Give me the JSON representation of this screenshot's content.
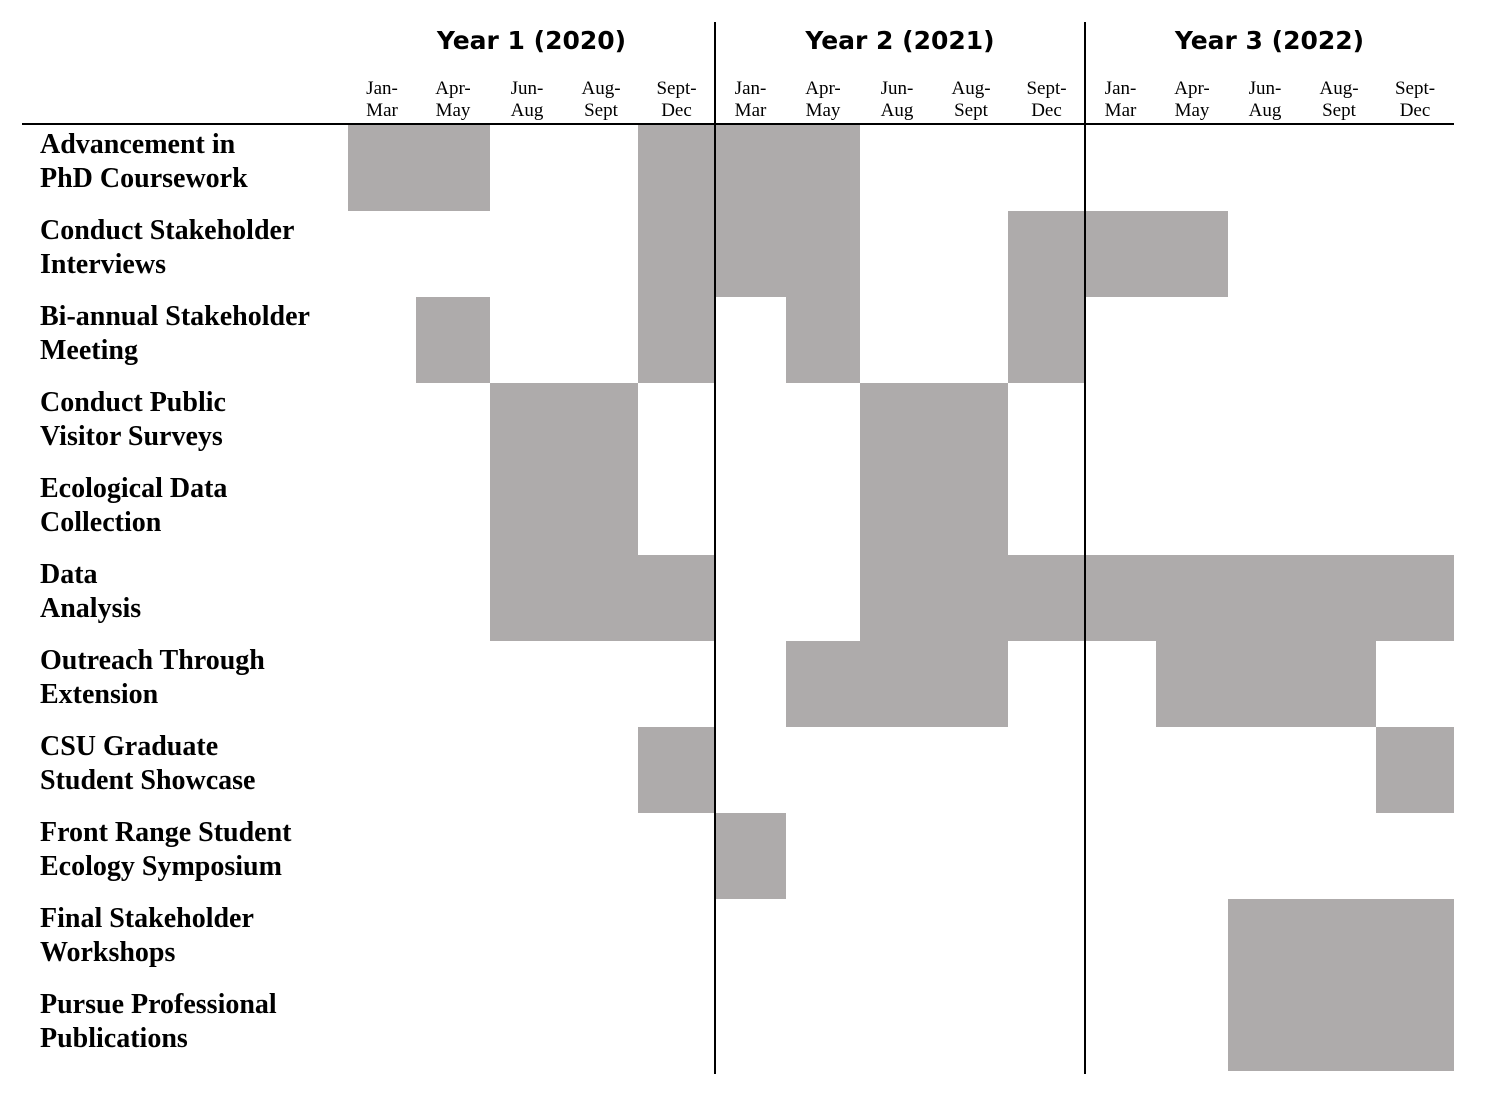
{
  "chart_data": {
    "type": "gantt",
    "years": [
      "Year 1 (2020)",
      "Year 2 (2021)",
      "Year 3 (2022)"
    ],
    "periods": [
      [
        "Jan-",
        "Mar"
      ],
      [
        "Apr-",
        "May"
      ],
      [
        "Jun-",
        "Aug"
      ],
      [
        "Aug-",
        "Sept"
      ],
      [
        "Sept-",
        "Dec"
      ]
    ],
    "bar_color": "#aeabab",
    "tasks": [
      {
        "label": [
          "Advancement in",
          "PhD Coursework"
        ],
        "active": [
          0,
          1,
          4,
          5,
          6
        ]
      },
      {
        "label": [
          "Conduct Stakeholder",
          "Interviews"
        ],
        "active": [
          4,
          5,
          6,
          9,
          10,
          11
        ]
      },
      {
        "label": [
          "Bi-annual Stakeholder",
          "Meeting"
        ],
        "active": [
          1,
          4,
          6,
          9
        ]
      },
      {
        "label": [
          "Conduct Public",
          "Visitor Surveys"
        ],
        "active": [
          2,
          3,
          7,
          8
        ]
      },
      {
        "label": [
          "Ecological Data",
          "Collection"
        ],
        "active": [
          2,
          3,
          7,
          8
        ]
      },
      {
        "label": [
          "Data",
          "Analysis"
        ],
        "active": [
          2,
          3,
          4,
          7,
          8,
          9,
          10,
          11,
          12,
          13,
          14
        ]
      },
      {
        "label": [
          "Outreach Through",
          "Extension"
        ],
        "active": [
          6,
          7,
          8,
          11,
          12,
          13
        ]
      },
      {
        "label": [
          "CSU Graduate",
          "Student Showcase"
        ],
        "active": [
          4,
          14
        ]
      },
      {
        "label": [
          "Front Range Student",
          "Ecology Symposium"
        ],
        "active": [
          5
        ]
      },
      {
        "label": [
          "Final Stakeholder",
          "Workshops"
        ],
        "active": [
          12,
          13,
          14
        ]
      },
      {
        "label": [
          "Pursue Professional",
          "Publications"
        ],
        "active": [
          12,
          13,
          14
        ]
      }
    ]
  }
}
